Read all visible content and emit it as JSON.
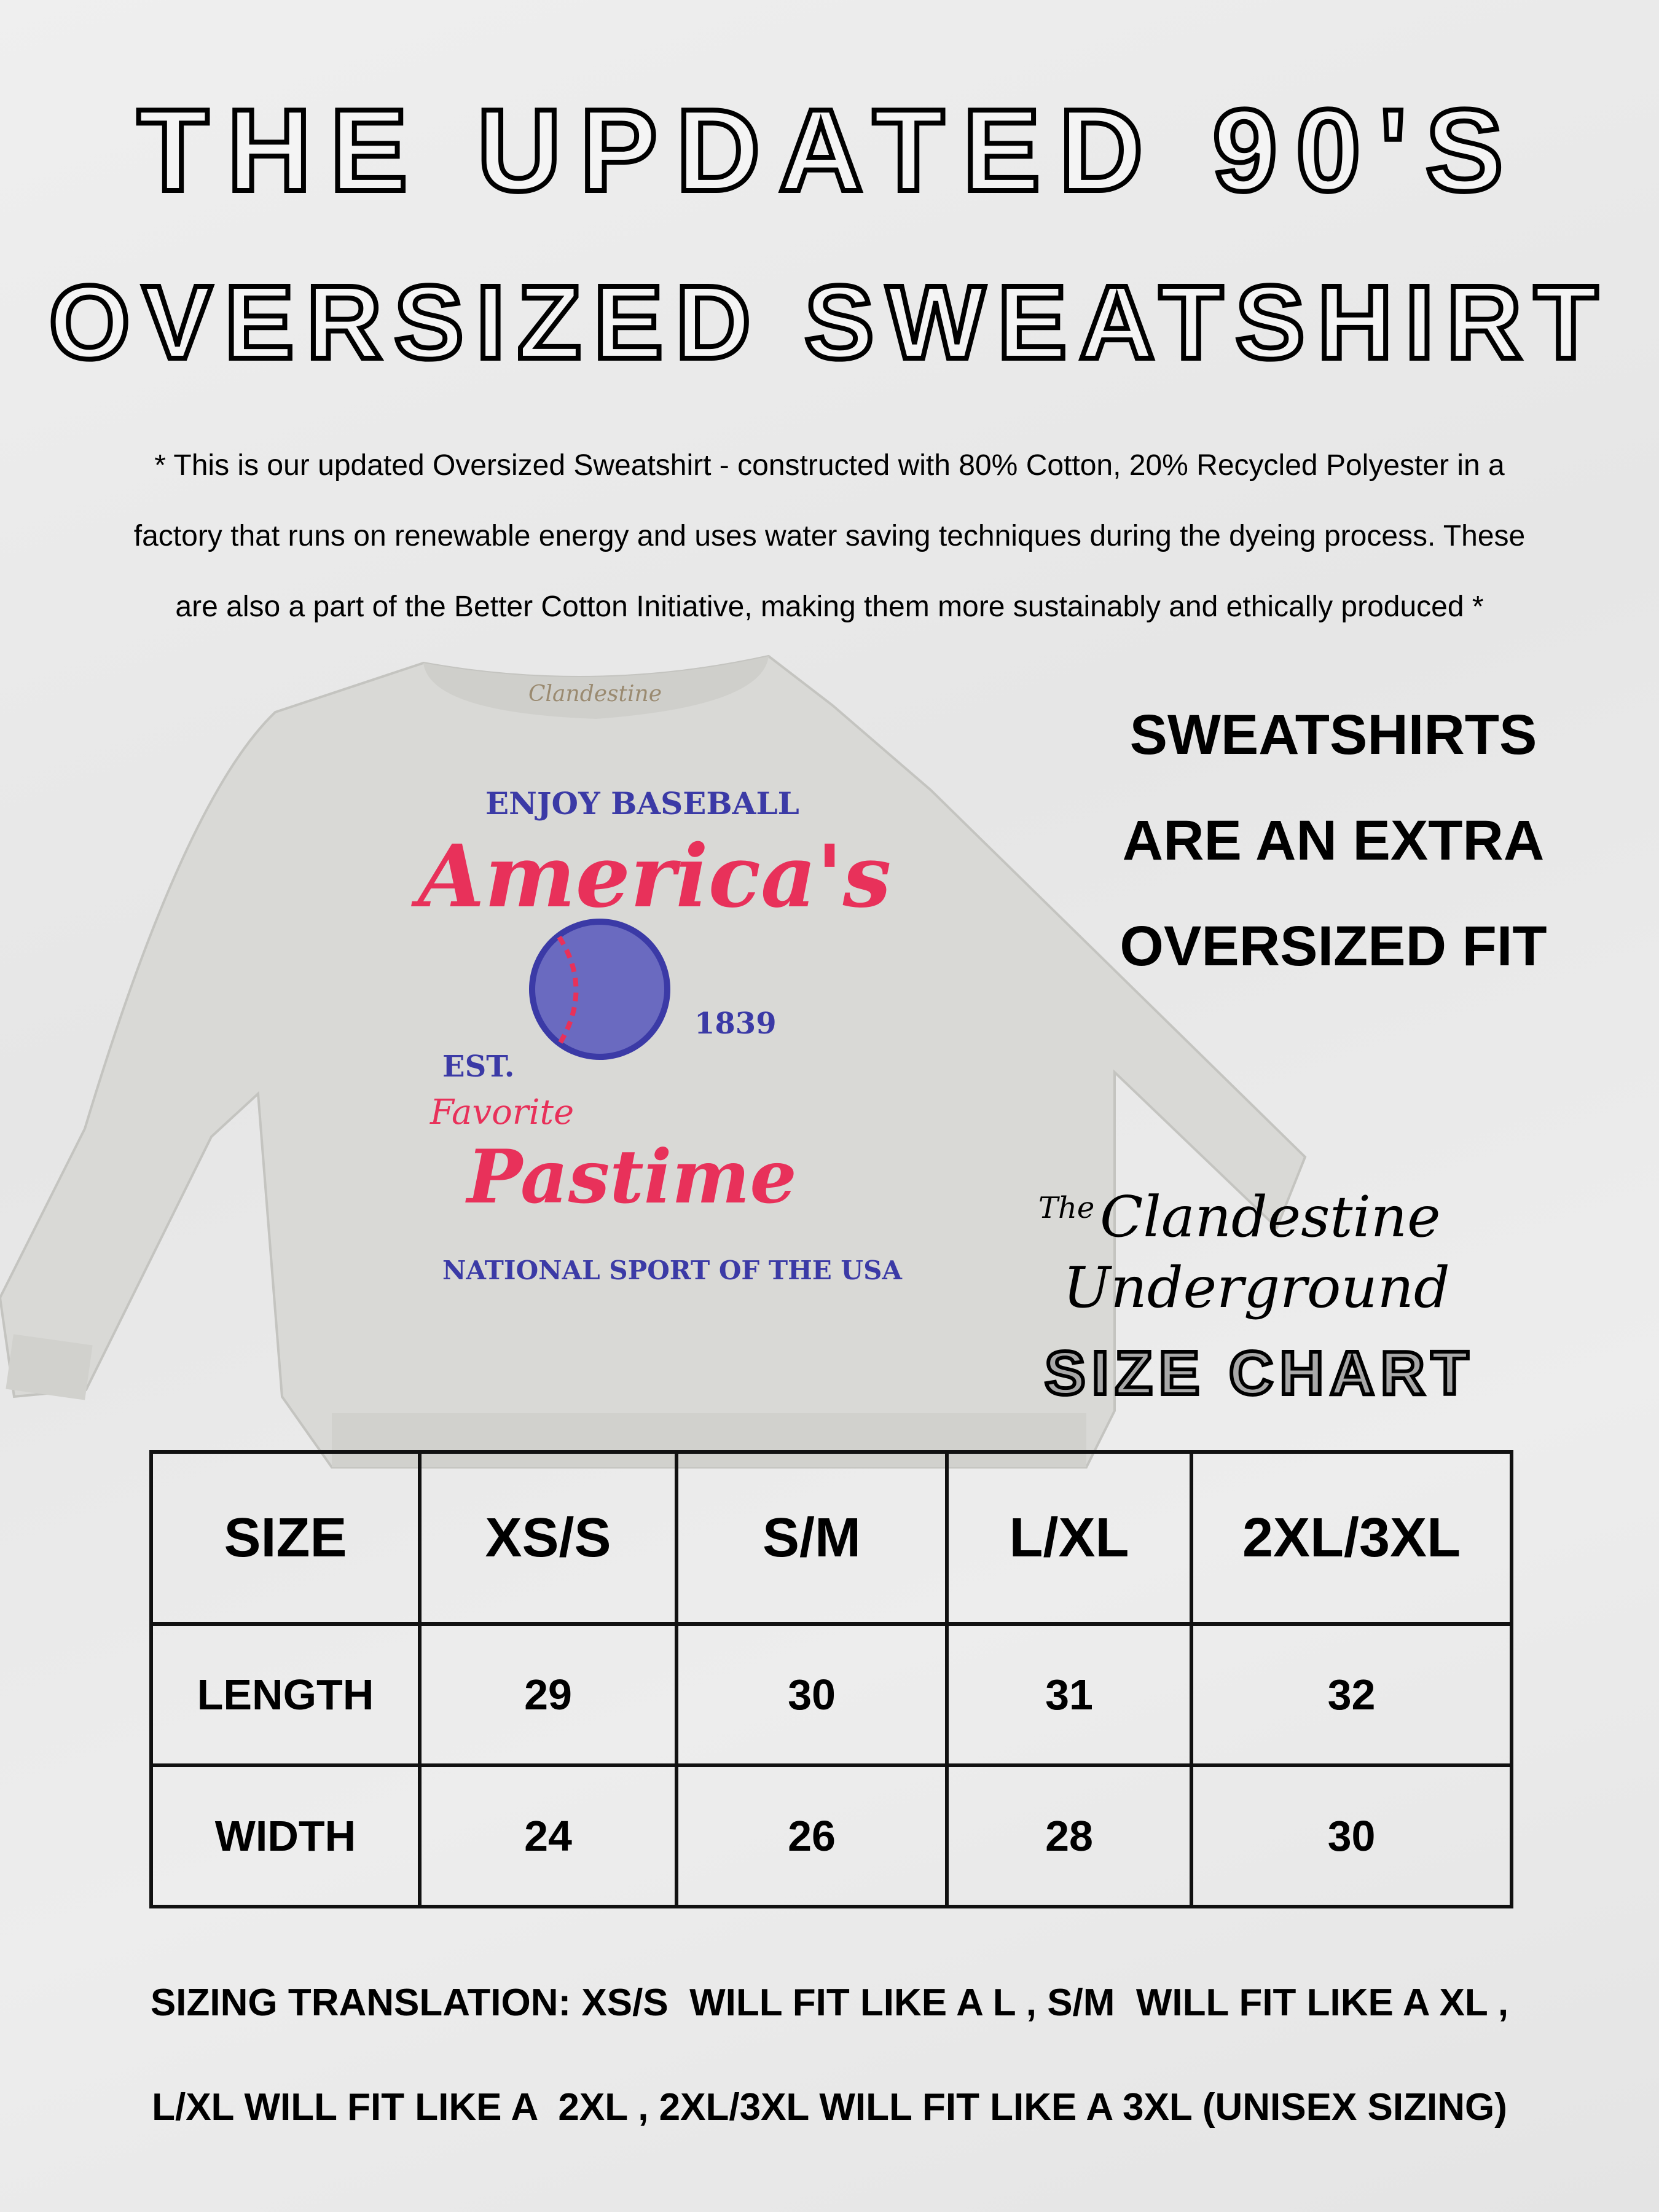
{
  "title": {
    "line1": "THE UPDATED 90'S",
    "line2": "OVERSIZED SWEATSHIRT"
  },
  "description": {
    "lines": [
      "* This is our updated Oversized Sweatshirt - constructed with 80% Cotton, 20% Recycled Polyester in a",
      "factory that runs on renewable energy and uses water saving techniques during the dyeing process. These",
      "are also a part of the Better Cotton Initiative, making them more sustainably and ethically produced *"
    ]
  },
  "shirt_print": {
    "collar_label": "Clandestine",
    "top": "ENJOY BASEBALL",
    "script1": "America's",
    "est": "EST.",
    "year": "1839",
    "script2": "Favorite",
    "script3": "Pastime",
    "bottom": "NATIONAL SPORT OF THE USA",
    "colors": {
      "shirt": "#d9d9d6",
      "red": "#e8315a",
      "blue": "#3b3aa6"
    }
  },
  "fit_note": {
    "lines": [
      "SWEATSHIRTS",
      "ARE AN EXTRA",
      "OVERSIZED FIT"
    ]
  },
  "logo": {
    "the": "The",
    "name1": "Clandestine",
    "name2": "Underground"
  },
  "size_chart": {
    "title": "SIZE CHART",
    "headers": [
      "SIZE",
      "XS/S",
      "S/M",
      "L/XL",
      "2XL/3XL"
    ],
    "rows": [
      {
        "label": "LENGTH",
        "values": [
          "29",
          "30",
          "31",
          "32"
        ]
      },
      {
        "label": "WIDTH",
        "values": [
          "24",
          "26",
          "28",
          "30"
        ]
      }
    ]
  },
  "sizing_translation": {
    "lines": [
      "SIZING TRANSLATION: XS/S  WILL FIT LIKE A L , S/M  WILL FIT LIKE A XL ,",
      "L/XL WILL FIT LIKE A  2XL , 2XL/3XL WILL FIT LIKE A 3XL (UNISEX SIZING)"
    ]
  }
}
